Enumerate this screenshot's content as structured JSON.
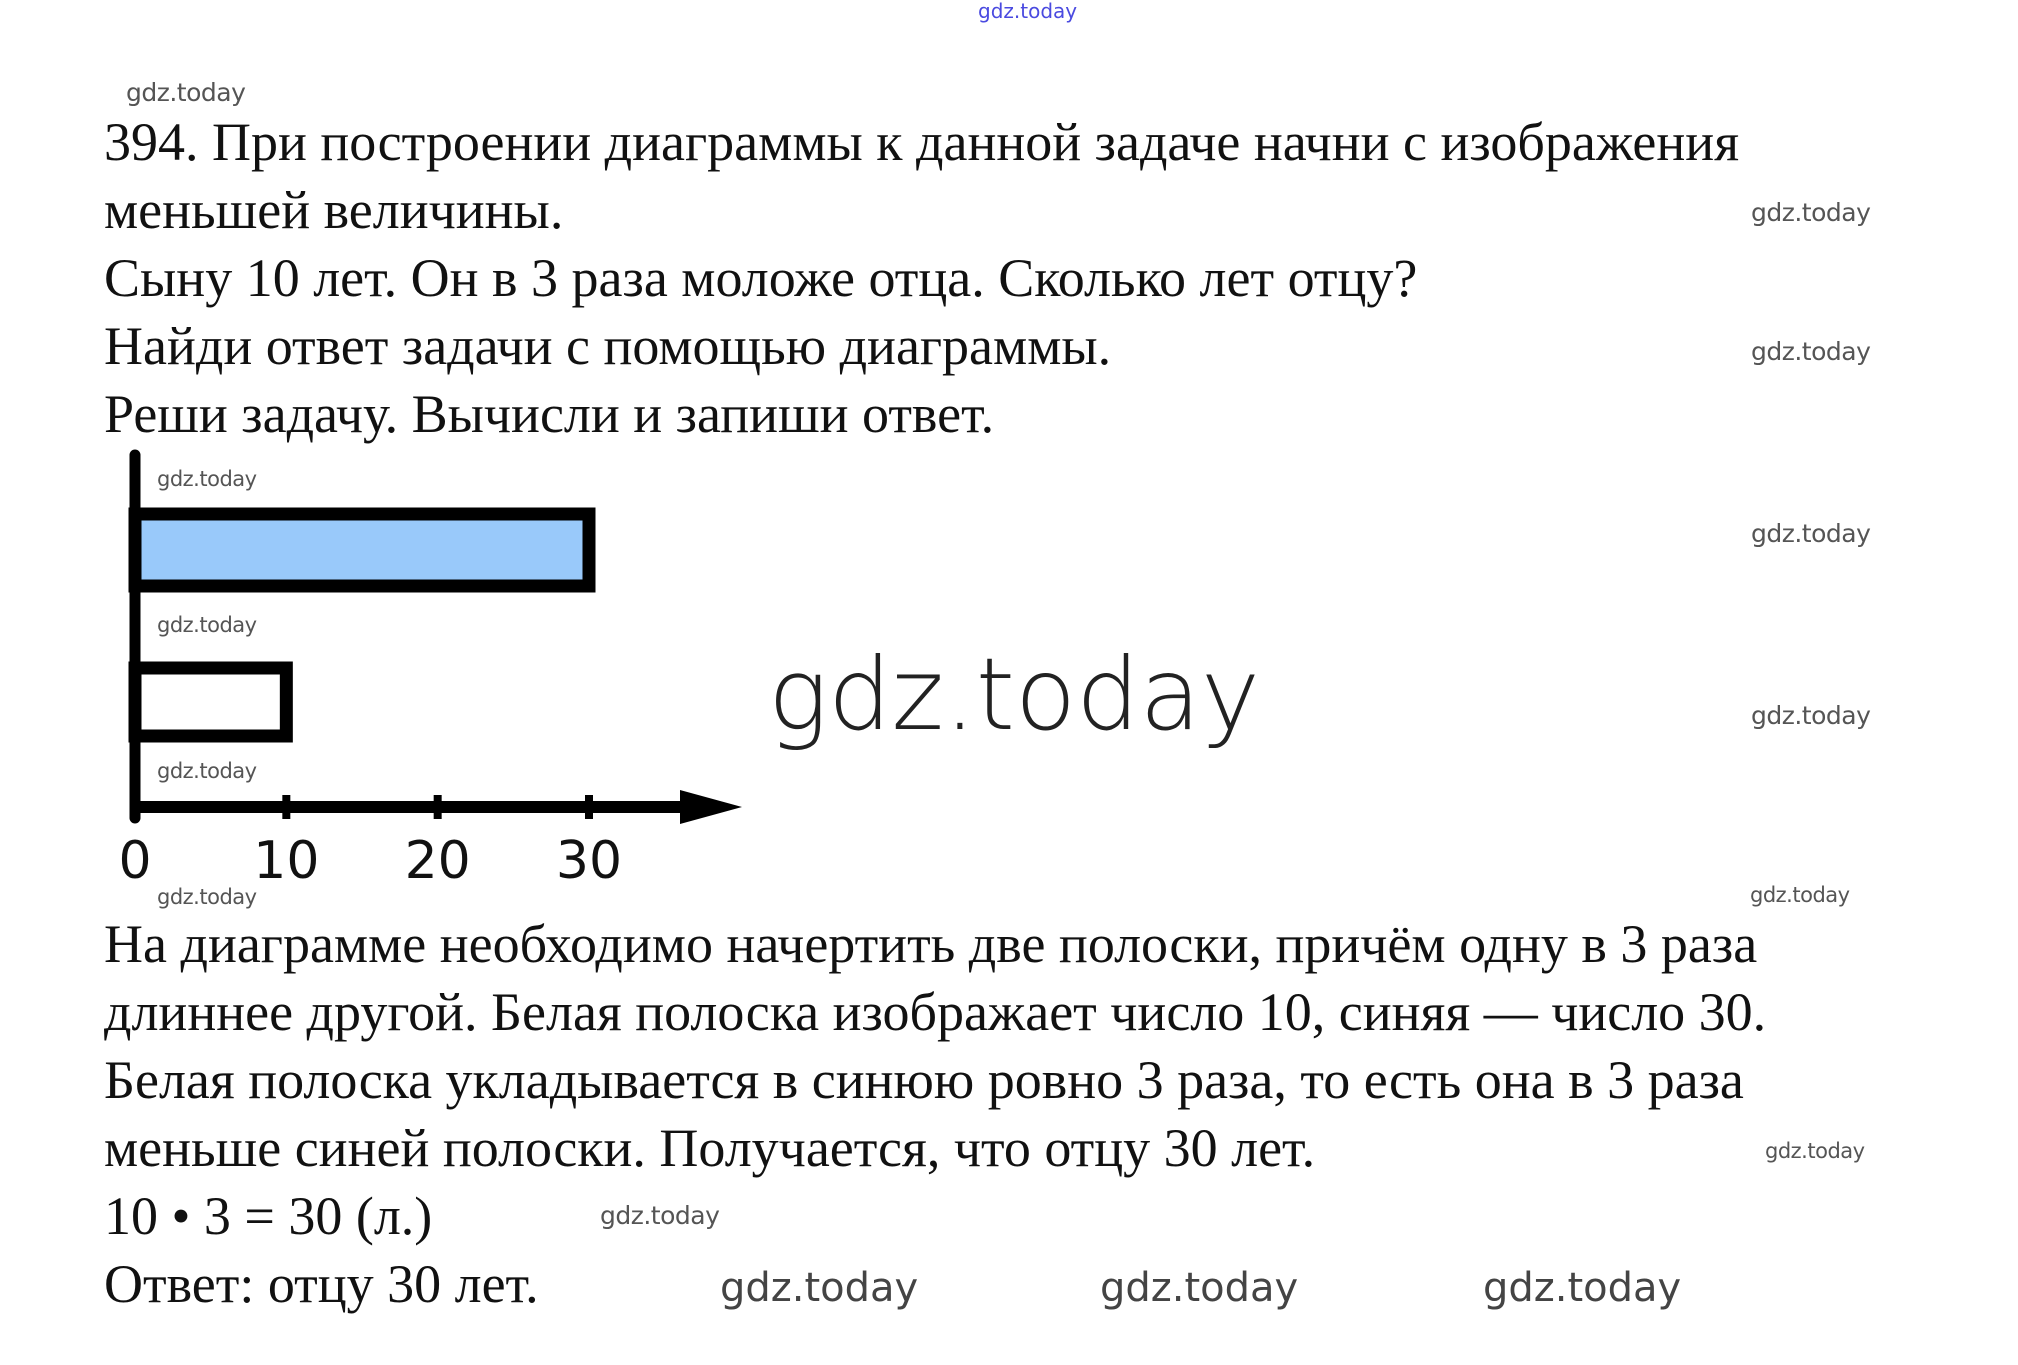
{
  "watermark_text": "gdz.today",
  "problem": {
    "lines": [
      "394. При построении диаграммы к данной задаче начни с изображения",
      "меньшей величины.",
      "Сыну 10 лет. Он в 3 раза моложе отца. Сколько лет отцу?",
      "Найди ответ задачи с помощью диаграммы.",
      "Реши задачу. Вычисли и запиши ответ."
    ]
  },
  "solution": {
    "lines": [
      "На диаграмме необходимо начертить две полоски, причём одну в 3 раза",
      "длиннее другой. Белая полоска изображает число 10, синяя — число 30.",
      "Белая полоска укладывается в синюю ровно 3 раза, то есть она в 3 раза",
      "меньше синей полоски. Получается, что отцу 30 лет.",
      "10 • 3 = 30 (л.)",
      "Ответ: отцу 30 лет."
    ]
  },
  "chart_data": {
    "type": "bar",
    "orientation": "horizontal",
    "values": [
      30,
      10
    ],
    "bar_colors": [
      "#99c9fa",
      "#ffffff"
    ],
    "xticks": [
      "0",
      "10",
      "20",
      "30"
    ],
    "xlim": [
      0,
      30
    ],
    "grid": false
  }
}
